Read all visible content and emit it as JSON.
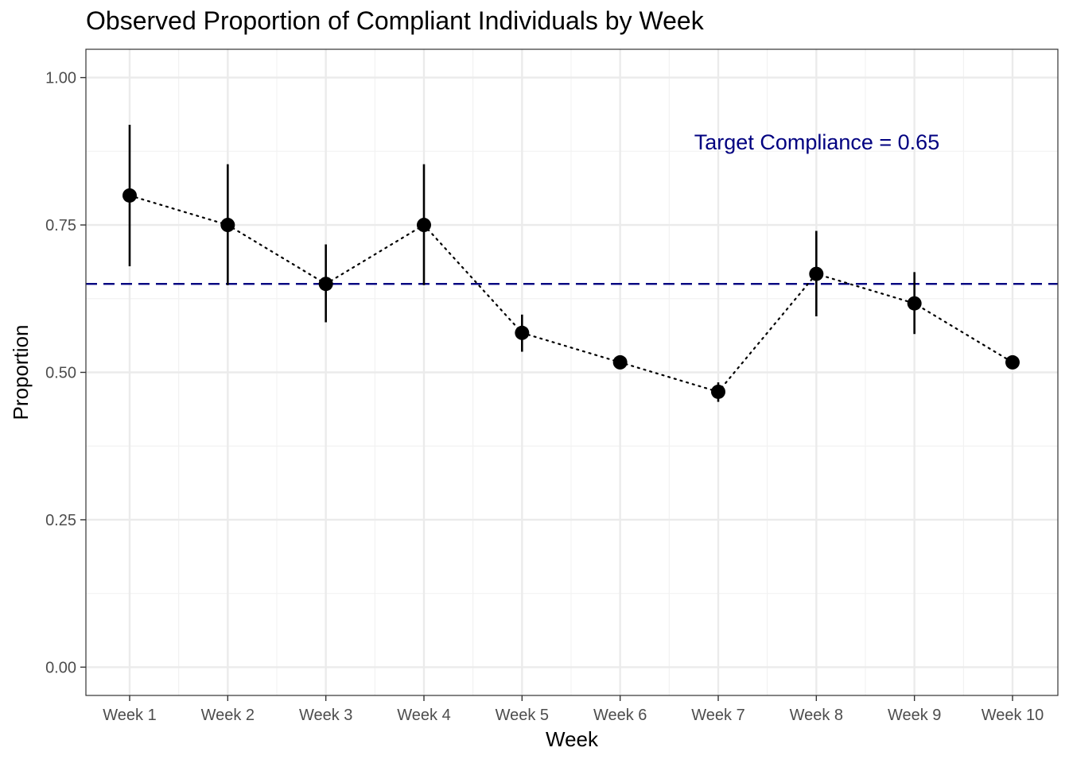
{
  "chart_data": {
    "type": "scatter",
    "title": "Observed Proportion of Compliant Individuals by Week",
    "xlabel": "Week",
    "ylabel": "Proportion",
    "categories": [
      "Week 1",
      "Week 2",
      "Week 3",
      "Week 4",
      "Week 5",
      "Week 6",
      "Week 7",
      "Week 8",
      "Week 9",
      "Week 10"
    ],
    "series": [
      {
        "values": [
          0.8,
          0.75,
          0.65,
          0.75,
          0.567,
          0.517,
          0.467,
          0.667,
          0.617,
          0.517
        ],
        "lower": [
          0.68,
          0.648,
          0.585,
          0.648,
          0.535,
          0.517,
          0.45,
          0.595,
          0.565,
          0.517
        ],
        "upper": [
          0.92,
          0.853,
          0.717,
          0.853,
          0.598,
          0.517,
          0.483,
          0.74,
          0.67,
          0.517
        ]
      }
    ],
    "ylim": [
      -0.048,
      1.048
    ],
    "yticks": [
      0.0,
      0.25,
      0.5,
      0.75,
      1.0
    ],
    "ytick_labels": [
      "0.00",
      "0.25",
      "0.50",
      "0.75",
      "1.00"
    ],
    "reference_line": {
      "y": 0.65,
      "color": "#000080",
      "style": "dashed"
    },
    "annotation": {
      "text": "Target Compliance = 0.65",
      "x_category": "Week 7.5",
      "y": 0.89,
      "color": "#000080"
    },
    "connecting_line_style": "dotted",
    "grid": true,
    "legend": "none",
    "colors": {
      "points": "#000000",
      "errorbars": "#000000",
      "grid_major": "#ebebeb",
      "grid_minor": "#f2f2f2",
      "border": "#333333"
    }
  }
}
